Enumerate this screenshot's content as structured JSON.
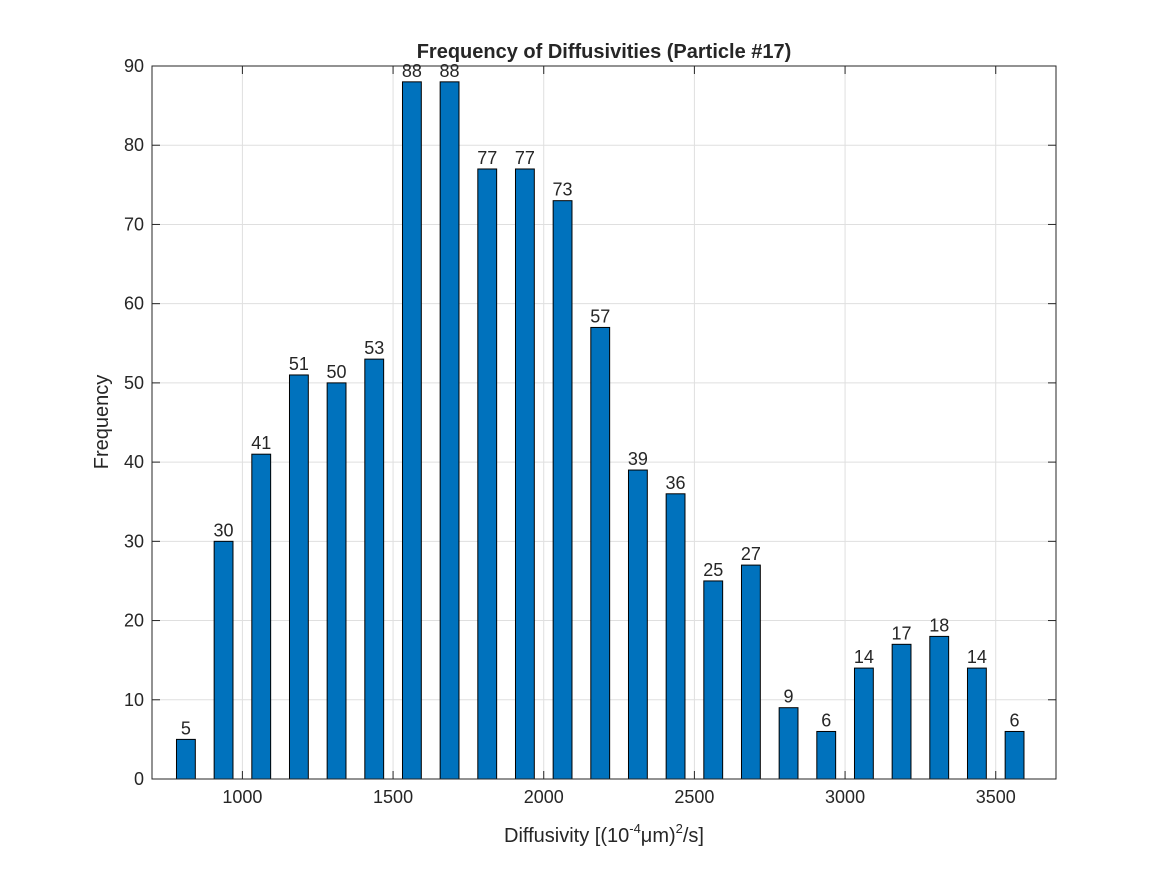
{
  "chart_data": {
    "type": "bar",
    "title": "Frequency of Diffusivities (Particle #17)",
    "xlabel": {
      "prefix": "Diffusivity [(10",
      "exp1": "-4",
      "mid": "μm)",
      "exp2": "2",
      "suffix": "/s]"
    },
    "ylabel": "Frequency",
    "x": [
      812.5,
      937.5,
      1062.5,
      1187.5,
      1312.5,
      1437.5,
      1562.5,
      1687.5,
      1812.5,
      1937.5,
      2062.5,
      2187.5,
      2312.5,
      2437.5,
      2562.5,
      2687.5,
      2812.5,
      2937.5,
      3062.5,
      3187.5,
      3312.5,
      3437.5,
      3562.5
    ],
    "values": [
      5,
      30,
      41,
      51,
      50,
      53,
      88,
      88,
      77,
      77,
      73,
      57,
      39,
      36,
      25,
      27,
      9,
      6,
      14,
      17,
      18,
      14,
      6
    ],
    "bar_width_data": 62.5,
    "xlim": [
      700,
      3700
    ],
    "ylim": [
      0,
      90
    ],
    "xticks": [
      1000,
      1500,
      2000,
      2500,
      3000,
      3500
    ],
    "yticks": [
      0,
      10,
      20,
      30,
      40,
      50,
      60,
      70,
      80,
      90
    ],
    "grid": true,
    "bar_color": "#0072bd",
    "bar_edge_color": "#000000"
  }
}
